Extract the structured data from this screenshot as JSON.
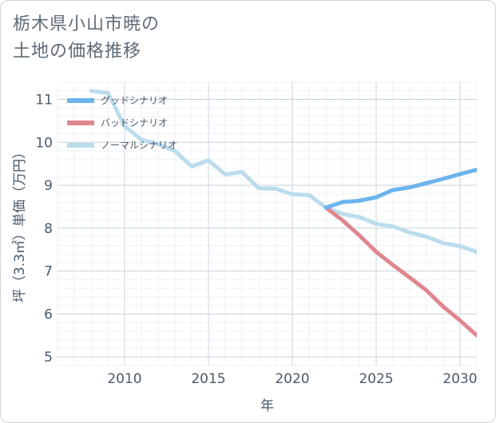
{
  "title_line1": "栃木県小山市暁の",
  "title_line2": "土地の価格推移",
  "chart_data": {
    "type": "line",
    "xlabel": "年",
    "ylabel": "坪（3.3㎡）単価（万円）",
    "xlim": [
      2006,
      2031
    ],
    "ylim": [
      4.8,
      11.4
    ],
    "xticks": [
      2010,
      2015,
      2020,
      2025,
      2030
    ],
    "yticks": [
      5,
      6,
      7,
      8,
      9,
      10,
      11
    ],
    "grid": true,
    "legend_position": "top-left",
    "series": [
      {
        "name": "グッドシナリオ",
        "color": "#6cb4ec",
        "x": [
          2022,
          2023,
          2024,
          2025,
          2026,
          2027,
          2028,
          2029,
          2030,
          2031
        ],
        "y": [
          8.48,
          8.61,
          8.64,
          8.72,
          8.89,
          8.95,
          9.05,
          9.15,
          9.26,
          9.36
        ]
      },
      {
        "name": "バッドシナリオ",
        "color": "#e0868f",
        "x": [
          2022,
          2023,
          2024,
          2025,
          2026,
          2027,
          2028,
          2029,
          2030,
          2031
        ],
        "y": [
          8.48,
          8.18,
          7.83,
          7.45,
          7.14,
          6.85,
          6.55,
          6.17,
          5.85,
          5.5
        ]
      },
      {
        "name": "ノーマルシナリオ",
        "color": "#bcdcec",
        "x": [
          2008,
          2009,
          2010,
          2011,
          2012,
          2013,
          2014,
          2015,
          2016,
          2017,
          2018,
          2019,
          2020,
          2021,
          2022,
          2023,
          2024,
          2025,
          2026,
          2027,
          2028,
          2029,
          2030,
          2031
        ],
        "y": [
          11.2,
          11.15,
          10.38,
          10.06,
          9.96,
          9.8,
          9.44,
          9.58,
          9.25,
          9.31,
          8.93,
          8.92,
          8.79,
          8.77,
          8.48,
          8.33,
          8.26,
          8.1,
          8.04,
          7.9,
          7.8,
          7.65,
          7.58,
          7.45
        ]
      }
    ]
  }
}
